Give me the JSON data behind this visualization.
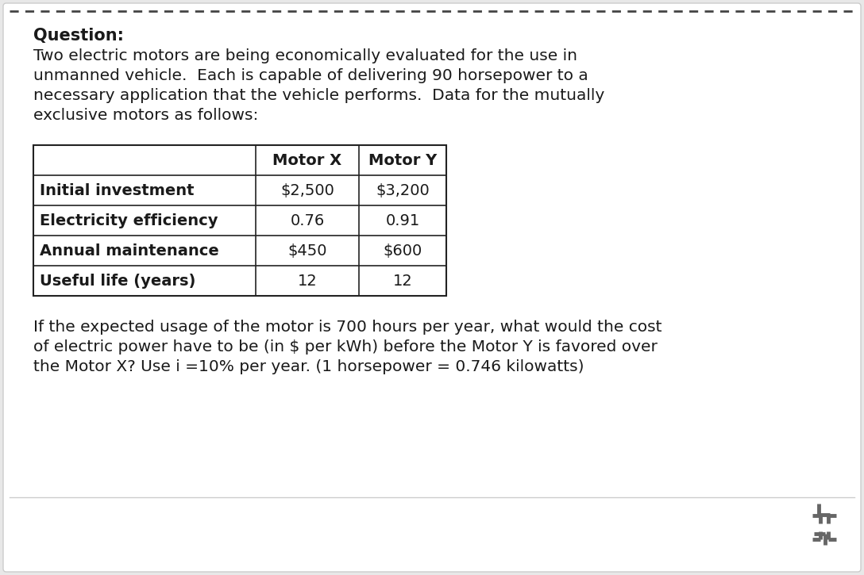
{
  "background_color": "#e8e8e8",
  "card_color": "#ffffff",
  "question_label": "Question:",
  "paragraph1_lines": [
    "Two electric motors are being economically evaluated for the use in",
    "unmanned vehicle.  Each is capable of delivering 90 horsepower to a",
    "necessary application that the vehicle performs.  Data for the mutually",
    "exclusive motors as follows:"
  ],
  "table_headers": [
    "",
    "Motor X",
    "Motor Y"
  ],
  "table_rows": [
    [
      "Initial investment",
      "$2,500",
      "$3,200"
    ],
    [
      "Electricity efficiency",
      "0.76",
      "0.91"
    ],
    [
      "Annual maintenance",
      "$450",
      "$600"
    ],
    [
      "Useful life (years)",
      "12",
      "12"
    ]
  ],
  "paragraph2_lines": [
    "If the expected usage of the motor is 700 hours per year, what would the cost",
    "of electric power have to be (in $ per kWh) before the Motor Y is favored over",
    "the Motor X? Use i =10% per year. (1 horsepower = 0.746 kilowatts)"
  ],
  "font_size_body": 14.5,
  "font_size_question": 15,
  "font_size_table": 14,
  "text_color": "#1a1a1a",
  "table_border_color": "#222222",
  "dashed_line_color": "#444444",
  "separator_color": "#cccccc",
  "icon_color": "#666666"
}
